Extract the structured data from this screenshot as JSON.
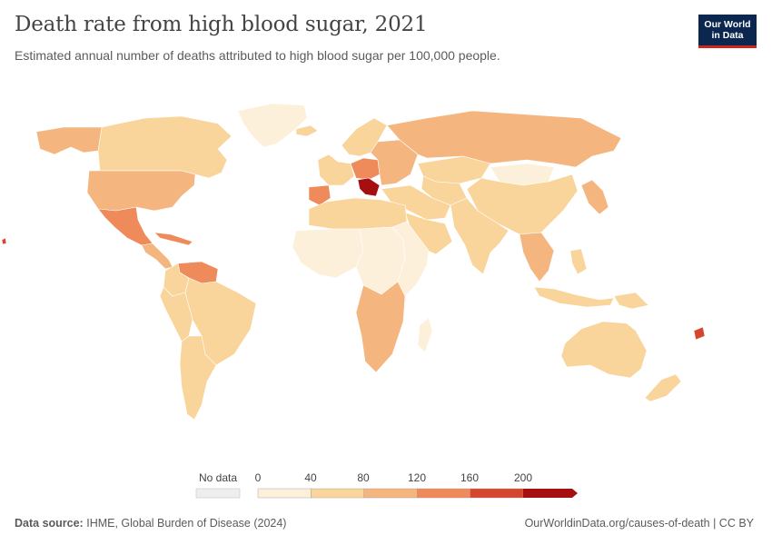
{
  "title": "Death rate from high blood sugar, 2021",
  "subtitle": "Estimated annual number of deaths attributed to high blood sugar per 100,000 people.",
  "logo": {
    "line1": "Our World",
    "line2": "in Data"
  },
  "legend": {
    "no_data_label": "No data",
    "ticks": [
      "0",
      "40",
      "80",
      "120",
      "160",
      "200"
    ],
    "colors": [
      "#fdf0da",
      "#f9d49b",
      "#f5b57f",
      "#ef8a5a",
      "#d6462e",
      "#a60f0f"
    ],
    "no_data_color": "#eeeeee"
  },
  "source": {
    "label": "Data source:",
    "text": "IHME, Global Burden of Disease (2024)"
  },
  "link": "OurWorldinData.org/causes-of-death | CC BY",
  "map_regions": [
    {
      "name": "Greenland",
      "color": "#fdf0da"
    },
    {
      "name": "Canada",
      "color": "#f9d49b"
    },
    {
      "name": "Alaska",
      "color": "#f5b57f"
    },
    {
      "name": "United States",
      "color": "#f5b57f"
    },
    {
      "name": "Mexico",
      "color": "#ef8a5a"
    },
    {
      "name": "Central America",
      "color": "#f5b57f"
    },
    {
      "name": "Caribbean",
      "color": "#ef8a5a"
    },
    {
      "name": "Venezuela & Guianas",
      "color": "#ef8a5a"
    },
    {
      "name": "Colombia",
      "color": "#f9d49b"
    },
    {
      "name": "Brazil",
      "color": "#f9d49b"
    },
    {
      "name": "Andean",
      "color": "#f9d49b"
    },
    {
      "name": "Argentina & Chile",
      "color": "#f9d49b"
    },
    {
      "name": "Iceland",
      "color": "#f9d49b"
    },
    {
      "name": "Scandinavia",
      "color": "#f9d49b"
    },
    {
      "name": "Western Europe",
      "color": "#f9d49b"
    },
    {
      "name": "Iberia",
      "color": "#ef8a5a"
    },
    {
      "name": "Central Europe",
      "color": "#ef8a5a"
    },
    {
      "name": "Balkans",
      "color": "#a60f0f"
    },
    {
      "name": "Eastern Europe",
      "color": "#f5b57f"
    },
    {
      "name": "Russia",
      "color": "#f5b57f"
    },
    {
      "name": "Kazakhstan",
      "color": "#f9d49b"
    },
    {
      "name": "Central Asia",
      "color": "#f9d49b"
    },
    {
      "name": "Mongolia",
      "color": "#fdf0da"
    },
    {
      "name": "China",
      "color": "#f9d49b"
    },
    {
      "name": "Middle East",
      "color": "#f9d49b"
    },
    {
      "name": "Arabia",
      "color": "#f9d49b"
    },
    {
      "name": "South Asia",
      "color": "#f9d49b"
    },
    {
      "name": "Southeast Asia",
      "color": "#f5b57f"
    },
    {
      "name": "Japan & Korea",
      "color": "#f5b57f"
    },
    {
      "name": "Indonesia & Philippines",
      "color": "#f9d49b"
    },
    {
      "name": "Papua New Guinea",
      "color": "#f9d49b"
    },
    {
      "name": "Australia",
      "color": "#f9d49b"
    },
    {
      "name": "New Zealand",
      "color": "#f9d49b"
    },
    {
      "name": "North Africa",
      "color": "#f9d49b"
    },
    {
      "name": "West Africa",
      "color": "#fdf0da"
    },
    {
      "name": "Central Africa",
      "color": "#fdf0da"
    },
    {
      "name": "East Africa",
      "color": "#fdf0da"
    },
    {
      "name": "Southern Africa",
      "color": "#f5b57f"
    },
    {
      "name": "Madagascar",
      "color": "#fdf0da"
    },
    {
      "name": "Pacific Islands",
      "color": "#d6462e"
    }
  ]
}
